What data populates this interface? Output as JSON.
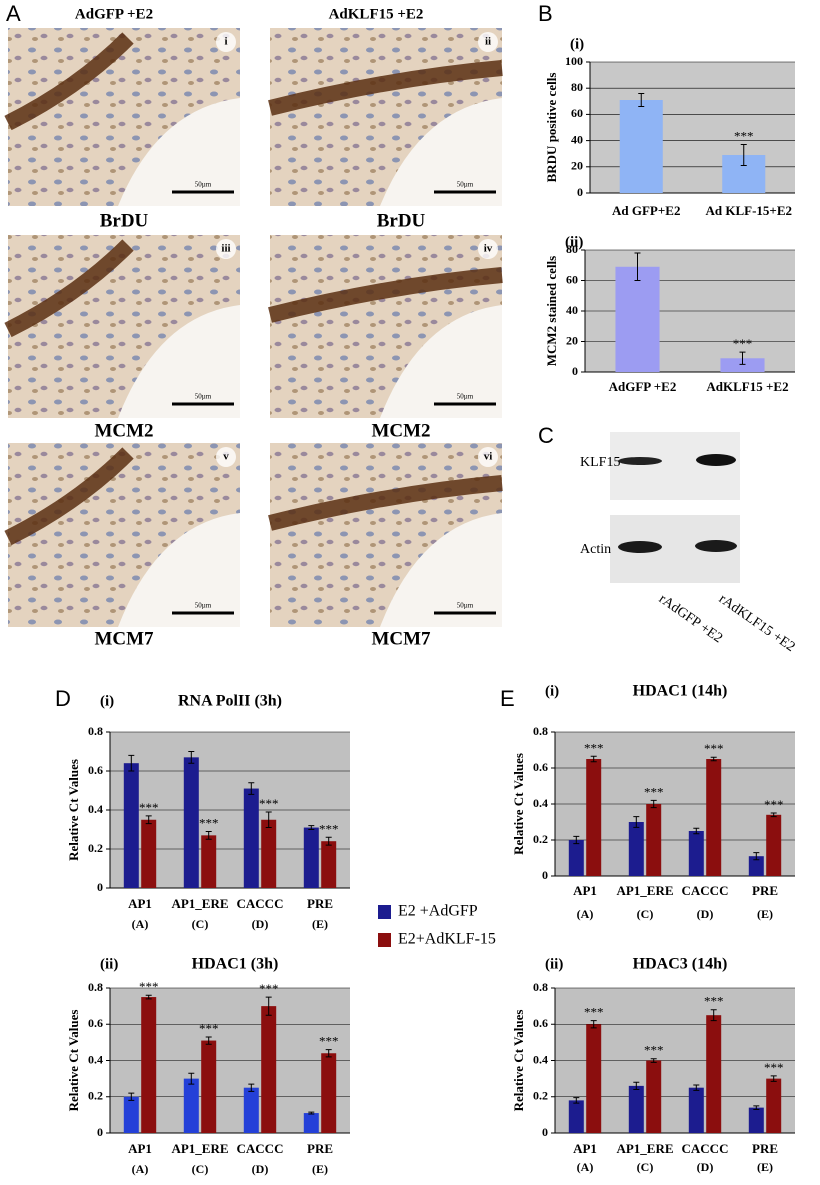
{
  "panel_letters": {
    "a": "A",
    "b": "B",
    "c": "C",
    "d": "D",
    "e": "E"
  },
  "micrographs": {
    "columns": [
      "AdGFP +E2",
      "AdKLF15 +E2"
    ],
    "rows": [
      {
        "caption": "BrDU",
        "tags": [
          "i",
          "ii"
        ]
      },
      {
        "caption": "MCM2",
        "tags": [
          "iii",
          "iv"
        ]
      },
      {
        "caption": "MCM7",
        "tags": [
          "v",
          "vi"
        ]
      }
    ],
    "scale_bar": "50µm"
  },
  "blot": {
    "bands": [
      "KLF15",
      "Actin"
    ],
    "lanes": [
      "rAdGFP +E2",
      "rAdKLF15 +E2"
    ]
  },
  "chart_data": [
    {
      "type": "bar",
      "panel": "(i)",
      "ylabel": "BRDU positive cells",
      "categories": [
        "Ad GFP+E2",
        "Ad KLF-15+E2"
      ],
      "values": [
        71,
        29
      ],
      "errors": [
        5,
        8
      ],
      "annotations": [
        null,
        "***"
      ],
      "color": "#8fb4f5",
      "ylim": [
        0,
        100
      ],
      "yticks": [
        0,
        20,
        40,
        60,
        80,
        100
      ]
    },
    {
      "type": "bar",
      "panel": "(ii)",
      "ylabel": "MCM2 stained cells",
      "categories": [
        "AdGFP +E2",
        "AdKLF15 +E2"
      ],
      "values": [
        69,
        9
      ],
      "errors": [
        9,
        4
      ],
      "annotations": [
        null,
        "***"
      ],
      "color": "#9c9cf2",
      "ylim": [
        0,
        80
      ],
      "yticks": [
        0,
        20,
        40,
        60,
        80
      ]
    },
    {
      "type": "grouped-bar",
      "panel": "(i)",
      "title": "RNA PolII (3h)",
      "ylabel": "Relative Ct Values",
      "categories": [
        "AP1",
        "AP1_ERE",
        "CACCC",
        "PRE"
      ],
      "category_codes": [
        "(A)",
        "(C)",
        "(D)",
        "(E)"
      ],
      "series": [
        {
          "name": "E2 +AdGFP",
          "color": "#1c1c8f",
          "values": [
            0.64,
            0.67,
            0.51,
            0.31
          ],
          "errors": [
            0.04,
            0.03,
            0.03,
            0.01
          ]
        },
        {
          "name": "E2+AdKLF-15",
          "color": "#8b0e0e",
          "values": [
            0.35,
            0.27,
            0.35,
            0.24
          ],
          "errors": [
            0.02,
            0.02,
            0.04,
            0.02
          ],
          "annotations": [
            "***",
            "***",
            "***",
            "***"
          ]
        }
      ],
      "ylim": [
        0,
        0.8
      ],
      "yticks": [
        0,
        0.2,
        0.4,
        0.6,
        0.8
      ]
    },
    {
      "type": "grouped-bar",
      "panel": "(ii)",
      "title": "HDAC1 (3h)",
      "ylabel": "Relative Ct Values",
      "categories": [
        "AP1",
        "AP1_ERE",
        "CACCC",
        "PRE"
      ],
      "category_codes": [
        "(A)",
        "(C)",
        "(D)",
        "(E)"
      ],
      "series": [
        {
          "color": "#2440d8",
          "values": [
            0.2,
            0.3,
            0.25,
            0.11
          ],
          "errors": [
            0.02,
            0.03,
            0.02,
            0.005
          ]
        },
        {
          "color": "#8b0e0e",
          "values": [
            0.75,
            0.51,
            0.7,
            0.44
          ],
          "errors": [
            0.01,
            0.02,
            0.05,
            0.02
          ],
          "annotations": [
            "***",
            "***",
            "***",
            "***"
          ]
        }
      ],
      "ylim": [
        0,
        0.8
      ],
      "yticks": [
        0,
        0.2,
        0.4,
        0.6,
        0.8
      ]
    },
    {
      "type": "grouped-bar",
      "panel": "(i)",
      "title": "HDAC1 (14h)",
      "ylabel": "Relative Ct Values",
      "categories": [
        "AP1",
        "AP1_ERE",
        "CACCC",
        "PRE"
      ],
      "category_codes": [
        "(A)",
        "(C)",
        "(D)",
        "(E)"
      ],
      "series": [
        {
          "color": "#1c1c8f",
          "values": [
            0.2,
            0.3,
            0.25,
            0.11
          ],
          "errors": [
            0.02,
            0.03,
            0.015,
            0.02
          ]
        },
        {
          "color": "#8b0e0e",
          "values": [
            0.65,
            0.4,
            0.65,
            0.34
          ],
          "errors": [
            0.015,
            0.02,
            0.01,
            0.01
          ],
          "annotations": [
            "***",
            "***",
            "***",
            "***"
          ]
        }
      ],
      "ylim": [
        0,
        0.8
      ],
      "yticks": [
        0,
        0.2,
        0.4,
        0.6,
        0.8
      ]
    },
    {
      "type": "grouped-bar",
      "panel": "(ii)",
      "title": "HDAC3 (14h)",
      "ylabel": "Relative Ct Values",
      "categories": [
        "AP1",
        "AP1_ERE",
        "CACCC",
        "PRE"
      ],
      "category_codes": [
        "(A)",
        "(C)",
        "(D)",
        "(E)"
      ],
      "series": [
        {
          "color": "#1c1c8f",
          "values": [
            0.18,
            0.26,
            0.25,
            0.14
          ],
          "errors": [
            0.015,
            0.02,
            0.015,
            0.01
          ]
        },
        {
          "color": "#8b0e0e",
          "values": [
            0.6,
            0.4,
            0.65,
            0.3
          ],
          "errors": [
            0.02,
            0.01,
            0.03,
            0.015
          ],
          "annotations": [
            "***",
            "***",
            "***",
            "***"
          ]
        }
      ],
      "ylim": [
        0,
        0.8
      ],
      "yticks": [
        0,
        0.2,
        0.4,
        0.6,
        0.8
      ]
    }
  ]
}
